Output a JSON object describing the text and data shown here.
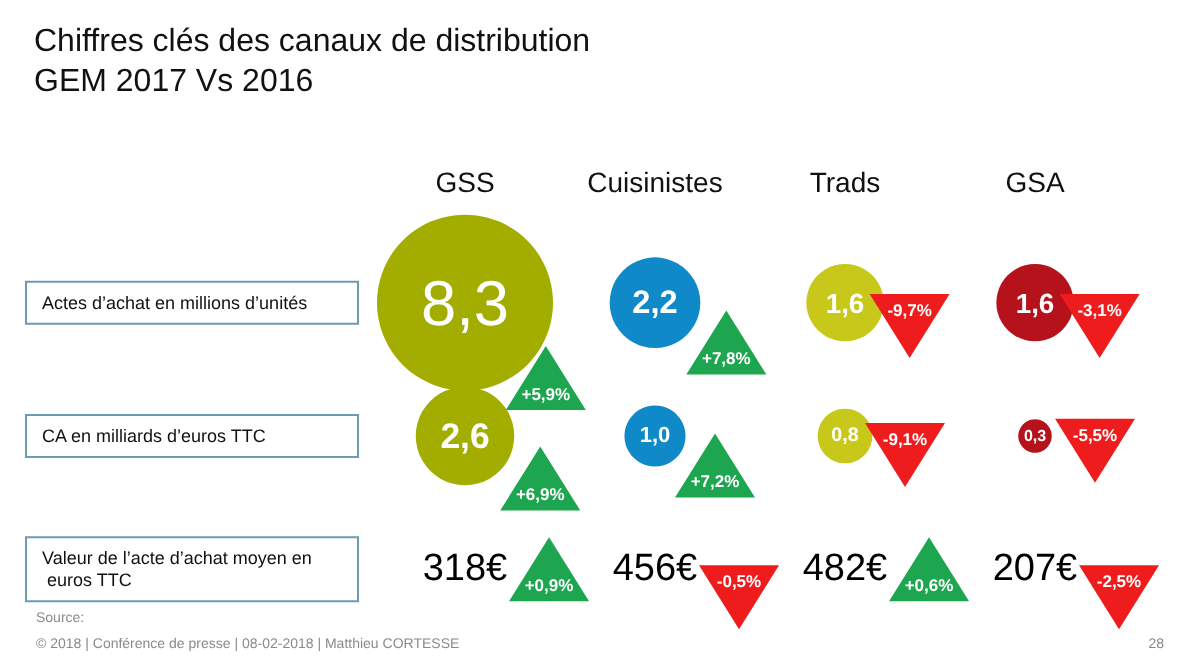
{
  "chart_data": {
    "type": "other",
    "title": "Chiffres clés des canaux de distribution",
    "subtitle": "GEM 2017 Vs 2016",
    "categories": [
      "GSS",
      "Cuisinistes",
      "Trads",
      "GSA"
    ],
    "y_categories": [
      "Actes d’achat en millions d’unités",
      "CA en milliards d’euros TTC",
      "Valeur de l’acte d’achat moyen en euros TTC"
    ],
    "series": [
      {
        "marker": "circle",
        "colors": [
          "#a3ad00",
          "#1089c9",
          "#c8c81a",
          "#b5121b"
        ],
        "values": [
          8.3,
          2.2,
          1.6,
          1.6
        ],
        "value_labels": [
          "8,3",
          "2,2",
          "1,6",
          "1,6"
        ]
      },
      {
        "marker": "triangle",
        "colors": [
          "#1ea54f",
          "#1ea54f",
          "#ee1c1c",
          "#ee1c1c"
        ],
        "values": [
          5.9,
          7.8,
          -9.7,
          -3.1
        ],
        "value_labels": [
          "+5,9%",
          "+7,8%",
          "-9,7%",
          "-3,1%"
        ]
      },
      {
        "marker": "circle",
        "colors": [
          "#a3ad00",
          "#1089c9",
          "#c8c81a",
          "#b5121b"
        ],
        "values": [
          2.6,
          1.0,
          0.8,
          0.3
        ],
        "value_labels": [
          "2,6",
          "1,0",
          "0,8",
          "0,3"
        ]
      },
      {
        "marker": "triangle",
        "colors": [
          "#1ea54f",
          "#1ea54f",
          "#ee1c1c",
          "#ee1c1c"
        ],
        "values": [
          6.9,
          7.2,
          -9.1,
          -5.5
        ],
        "value_labels": [
          "+6,9%",
          "+7,2%",
          "-9,1%",
          "-5,5%"
        ]
      },
      {
        "marker": "none",
        "values": [
          318,
          456,
          482,
          207
        ],
        "value_labels": [
          "318€",
          "456€",
          "482€",
          "207€"
        ]
      },
      {
        "marker": "triangle",
        "colors": [
          "#1ea54f",
          "#ee1c1c",
          "#1ea54f",
          "#ee1c1c"
        ],
        "values": [
          0.9,
          -0.5,
          0.6,
          -2.5
        ],
        "value_labels": [
          "+0,9%",
          "-0,5%",
          "+0,6%",
          "-2,5%"
        ]
      }
    ],
    "annotations": [
      "Source:",
      "© 2018 | Conférence de presse | 08-02-2018 | Matthieu CORTESSE",
      "28"
    ]
  }
}
